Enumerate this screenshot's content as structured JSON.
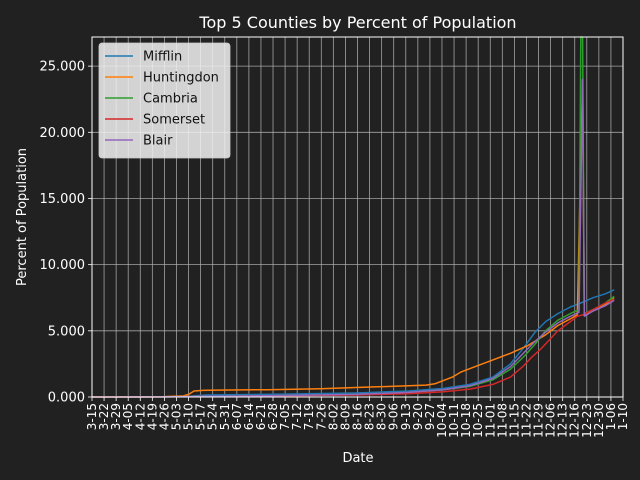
{
  "chart_data": {
    "type": "line",
    "title": "Top 5 Counties by Percent of Population",
    "xlabel": "Date",
    "ylabel": "Percent of Population",
    "ylim": [
      0,
      27.2
    ],
    "yticks": [
      "0.000",
      "5.000",
      "10.000",
      "15.000",
      "20.000",
      "25.000"
    ],
    "grid": true,
    "legend_position": "top-left",
    "x_tick_labels": [
      "3-15",
      "3-22",
      "3-29",
      "4-05",
      "4-12",
      "4-19",
      "4-26",
      "5-03",
      "5-10",
      "5-17",
      "5-24",
      "5-31",
      "6-07",
      "6-14",
      "6-21",
      "6-28",
      "7-05",
      "7-12",
      "7-19",
      "7-26",
      "8-02",
      "8-09",
      "8-16",
      "8-23",
      "8-30",
      "9-06",
      "9-13",
      "9-20",
      "9-27",
      "10-04",
      "10-11",
      "10-18",
      "10-25",
      "11-01",
      "11-08",
      "11-15",
      "11-22",
      "11-29",
      "12-06",
      "12-13",
      "12-16",
      "12-23",
      "12-30",
      "1-06",
      "1-10"
    ],
    "x_days": 302,
    "series": [
      {
        "name": "Mifflin",
        "color": "#1f77b4",
        "points": [
          [
            0,
            0
          ],
          [
            40,
            0.02
          ],
          [
            55,
            0.05
          ],
          [
            65,
            0.15
          ],
          [
            100,
            0.2
          ],
          [
            150,
            0.3
          ],
          [
            180,
            0.45
          ],
          [
            200,
            0.65
          ],
          [
            215,
            0.95
          ],
          [
            228,
            1.5
          ],
          [
            238,
            2.5
          ],
          [
            246,
            3.8
          ],
          [
            252,
            4.9
          ],
          [
            258,
            5.7
          ],
          [
            265,
            6.3
          ],
          [
            272,
            6.8
          ],
          [
            278,
            7.1
          ],
          [
            285,
            7.5
          ],
          [
            292,
            7.8
          ],
          [
            297,
            8.1
          ]
        ]
      },
      {
        "name": "Huntingdon",
        "color": "#ff7f0e",
        "points": [
          [
            0,
            0
          ],
          [
            40,
            0.02
          ],
          [
            52,
            0.08
          ],
          [
            55,
            0.2
          ],
          [
            58,
            0.45
          ],
          [
            63,
            0.5
          ],
          [
            70,
            0.52
          ],
          [
            100,
            0.55
          ],
          [
            130,
            0.62
          ],
          [
            150,
            0.72
          ],
          [
            170,
            0.8
          ],
          [
            180,
            0.85
          ],
          [
            190,
            0.9
          ],
          [
            195,
            1.0
          ],
          [
            205,
            1.5
          ],
          [
            210,
            1.9
          ],
          [
            218,
            2.3
          ],
          [
            228,
            2.8
          ],
          [
            238,
            3.3
          ],
          [
            248,
            3.9
          ],
          [
            258,
            4.7
          ],
          [
            265,
            5.4
          ],
          [
            272,
            5.9
          ],
          [
            276,
            6.2
          ],
          [
            279,
            24.0
          ],
          [
            280,
            6.2
          ],
          [
            285,
            6.5
          ],
          [
            292,
            7.0
          ],
          [
            297,
            7.5
          ]
        ]
      },
      {
        "name": "Cambria",
        "color": "#2ca02c",
        "points": [
          [
            0,
            0
          ],
          [
            40,
            0.01
          ],
          [
            100,
            0.1
          ],
          [
            150,
            0.2
          ],
          [
            180,
            0.35
          ],
          [
            200,
            0.55
          ],
          [
            215,
            0.8
          ],
          [
            228,
            1.3
          ],
          [
            238,
            2.1
          ],
          [
            246,
            3.1
          ],
          [
            252,
            4.0
          ],
          [
            258,
            5.0
          ],
          [
            265,
            5.8
          ],
          [
            272,
            6.3
          ],
          [
            277,
            6.6
          ],
          [
            278,
            27.2
          ],
          [
            279,
            27.2
          ],
          [
            280,
            6.3
          ],
          [
            285,
            6.6
          ],
          [
            292,
            7.1
          ],
          [
            297,
            7.6
          ]
        ]
      },
      {
        "name": "Somerset",
        "color": "#d62728",
        "points": [
          [
            0,
            0
          ],
          [
            40,
            0.01
          ],
          [
            100,
            0.08
          ],
          [
            150,
            0.15
          ],
          [
            180,
            0.25
          ],
          [
            200,
            0.4
          ],
          [
            215,
            0.6
          ],
          [
            228,
            0.95
          ],
          [
            238,
            1.5
          ],
          [
            245,
            2.3
          ],
          [
            250,
            3.0
          ],
          [
            255,
            3.6
          ],
          [
            260,
            4.3
          ],
          [
            265,
            5.0
          ],
          [
            272,
            5.7
          ],
          [
            276,
            6.1
          ],
          [
            279,
            6.2
          ],
          [
            285,
            6.6
          ],
          [
            292,
            7.1
          ],
          [
            297,
            7.4
          ]
        ]
      },
      {
        "name": "Blair",
        "color": "#9467bd",
        "points": [
          [
            0,
            0
          ],
          [
            40,
            0.01
          ],
          [
            100,
            0.1
          ],
          [
            150,
            0.2
          ],
          [
            180,
            0.35
          ],
          [
            200,
            0.55
          ],
          [
            215,
            0.85
          ],
          [
            228,
            1.4
          ],
          [
            238,
            2.3
          ],
          [
            246,
            3.4
          ],
          [
            252,
            4.2
          ],
          [
            258,
            4.9
          ],
          [
            265,
            5.6
          ],
          [
            272,
            6.1
          ],
          [
            277,
            6.4
          ],
          [
            279,
            24.0
          ],
          [
            280,
            6.1
          ],
          [
            285,
            6.5
          ],
          [
            292,
            6.9
          ],
          [
            297,
            7.3
          ]
        ]
      }
    ]
  }
}
